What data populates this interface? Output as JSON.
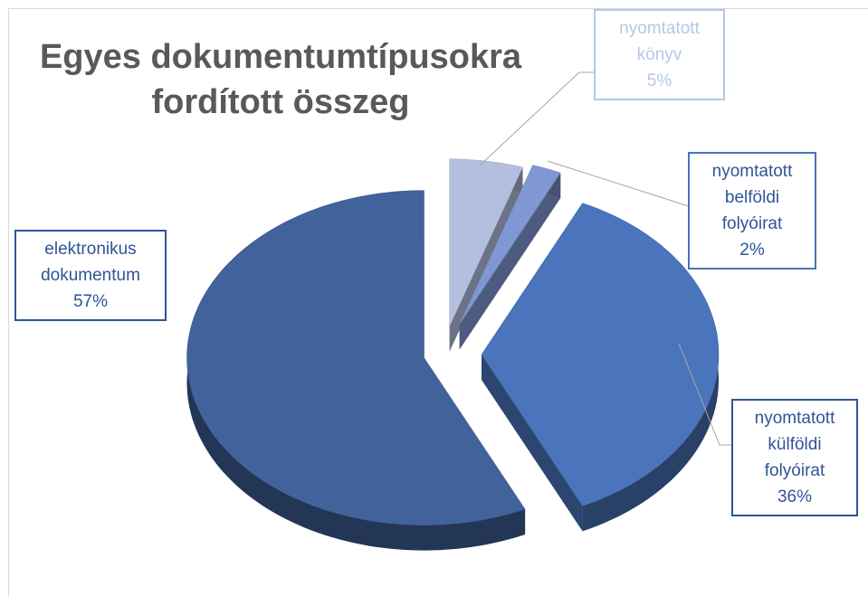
{
  "chart_data": {
    "type": "pie3d",
    "title": "Egyes dokumentumtípusokra fordított összeg",
    "categories": [
      "nyomtatott könyv",
      "nyomtatott belföldi folyóirat",
      "nyomtatott külföldi folyóirat",
      "elektronikus dokumentum"
    ],
    "values": [
      5,
      2,
      36,
      57
    ],
    "value_labels": [
      "5%",
      "2%",
      "36%",
      "57%"
    ],
    "colors": [
      "#b4bfe0",
      "#7f97d3",
      "#4a74bb",
      "#42629b"
    ]
  }
}
